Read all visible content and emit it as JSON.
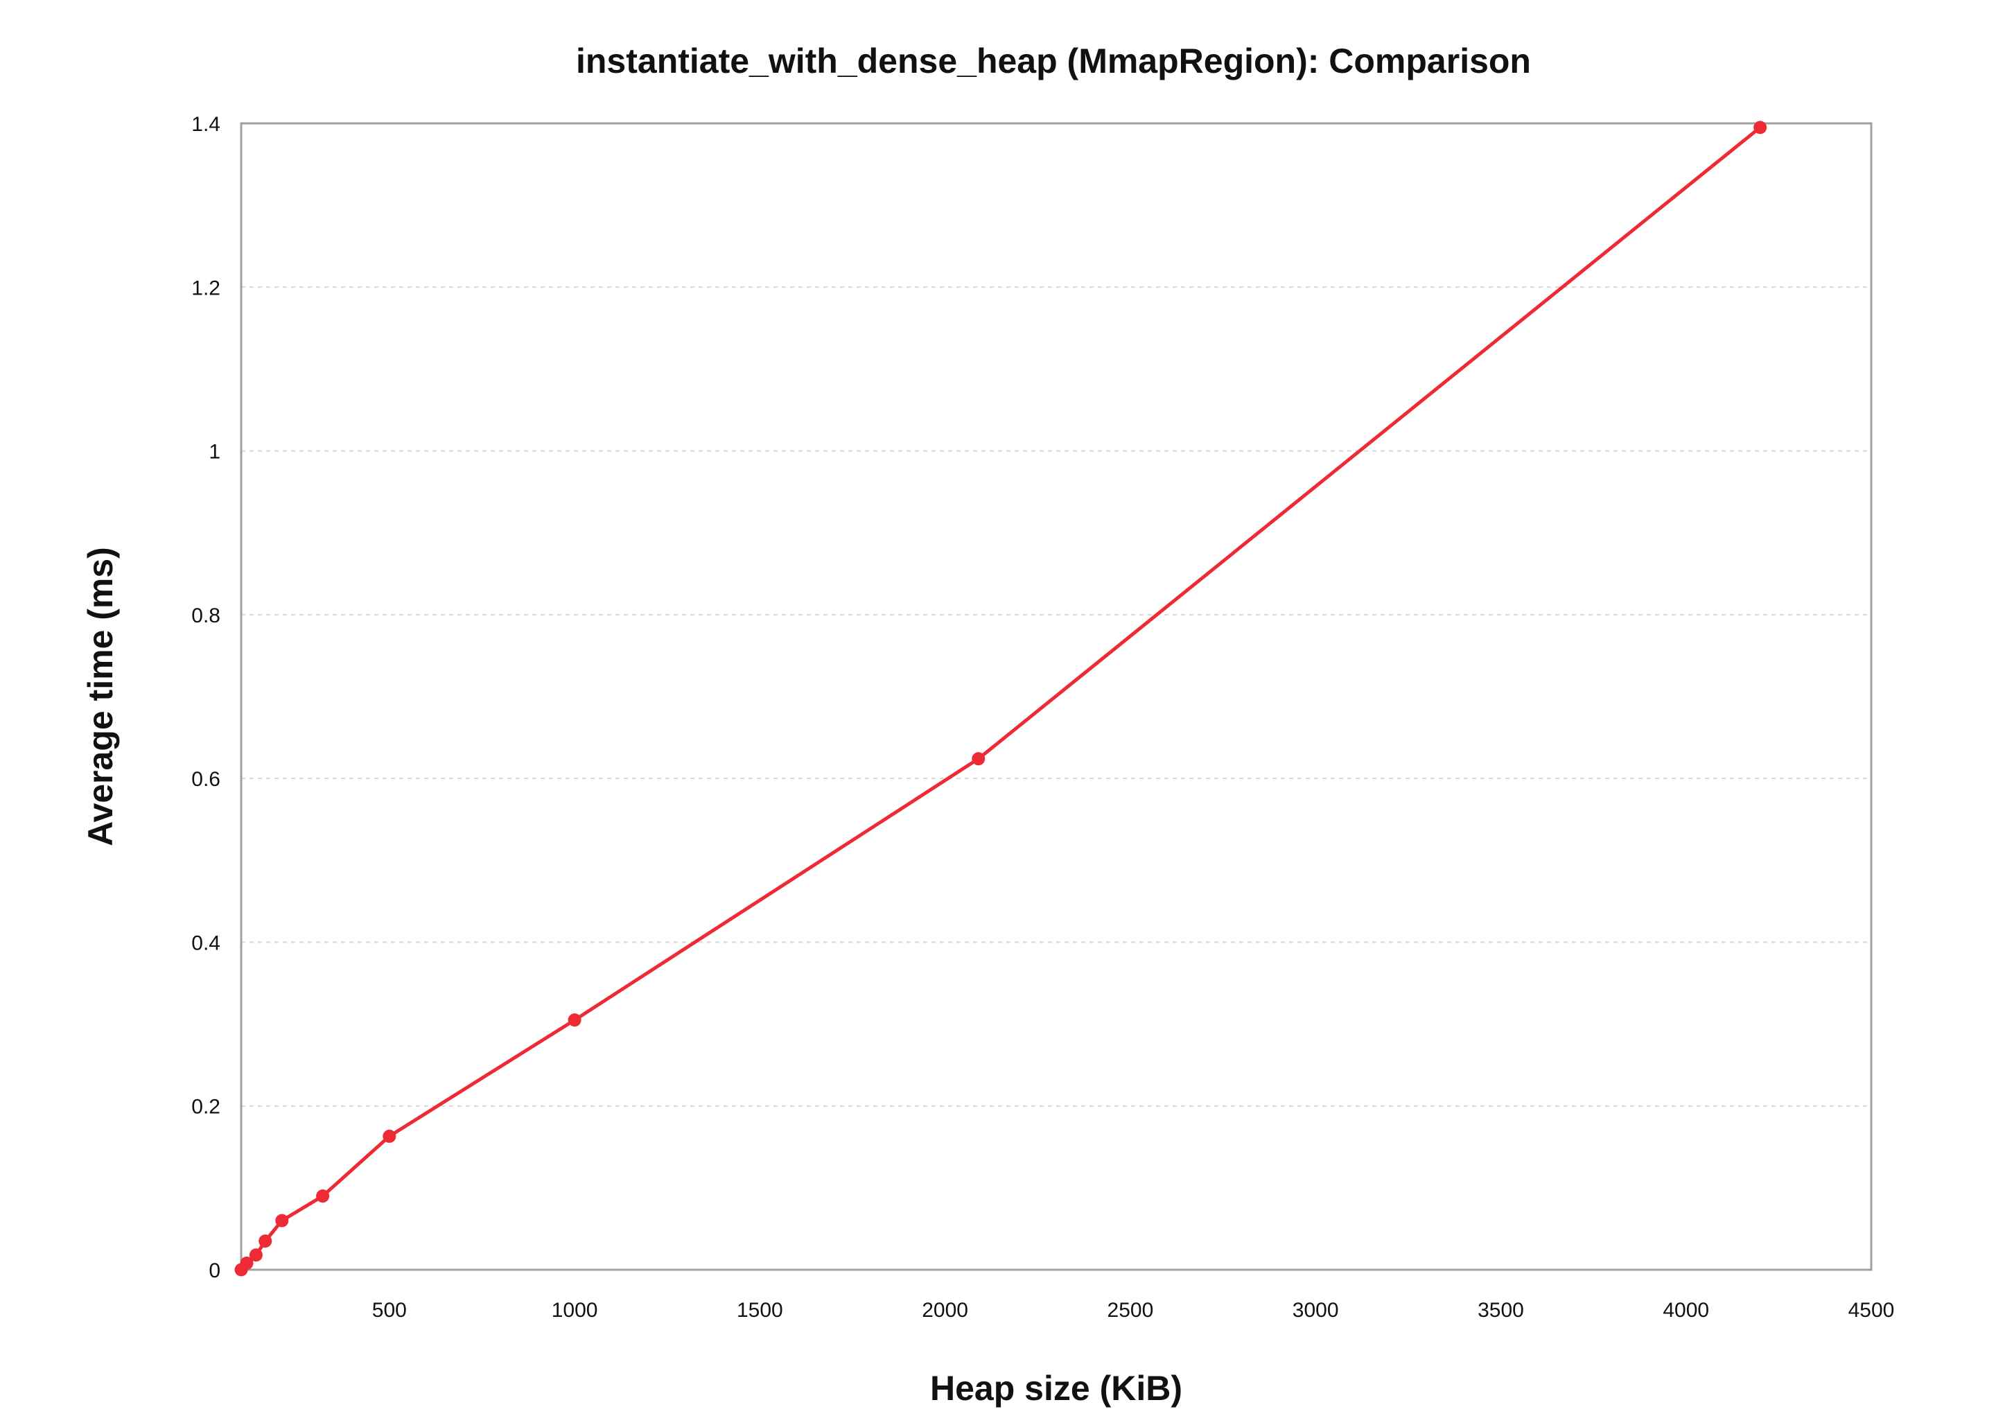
{
  "chart_data": {
    "type": "line",
    "title": "instantiate_with_dense_heap (MmapRegion): Comparison",
    "xlabel": "Heap size (KiB)",
    "ylabel": "Average time (ms)",
    "xlim": [
      100,
      4500
    ],
    "ylim": [
      0,
      1.4
    ],
    "x_ticks": [
      500,
      1000,
      1500,
      2000,
      2500,
      3000,
      3500,
      4000,
      4500
    ],
    "x_tick_labels": [
      "500",
      "1000",
      "1500",
      "2000",
      "2500",
      "3000",
      "3500",
      "4000",
      "4500"
    ],
    "y_ticks": [
      0,
      0.2,
      0.4,
      0.6,
      0.8,
      1.0,
      1.2,
      1.4
    ],
    "y_tick_labels": [
      "0",
      "0.2",
      "0.4",
      "0.6",
      "0.8",
      "1",
      "1.2",
      "1.4"
    ],
    "grid": "horizontal dashed",
    "legend": "none",
    "colors": {
      "series": "#ee2a35",
      "frame": "#a0a0a0",
      "grid": "#d8d8d8"
    },
    "series": [
      {
        "x": [
          100,
          115,
          140,
          165,
          210,
          320,
          500,
          1000,
          2090,
          4200
        ],
        "y": [
          0.0,
          0.008,
          0.018,
          0.035,
          0.06,
          0.09,
          0.163,
          0.305,
          0.624,
          1.395
        ]
      }
    ]
  }
}
